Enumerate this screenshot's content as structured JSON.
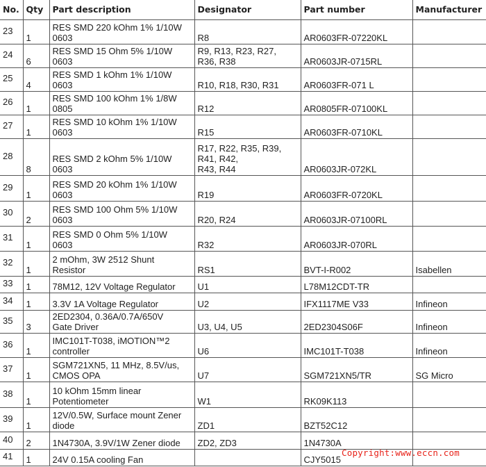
{
  "headers": {
    "no": "No.",
    "qty": "Qty",
    "desc": "Part description",
    "designator": "Designator",
    "part_number": "Part number",
    "manufacturer": "Manufacturer"
  },
  "rows": [
    {
      "no": "23",
      "qty": "1",
      "desc": "RES SMD 220 kOhm 1% 1/10W\n0603",
      "designator": "R8",
      "part_number": "AR0603FR-07220KL",
      "manufacturer": ""
    },
    {
      "no": "24",
      "qty": "6",
      "desc": "RES SMD 15 Ohm 5% 1/10W\n0603",
      "designator": "R9, R13, R23, R27,\nR36, R38",
      "part_number": "AR0603JR-0715RL",
      "manufacturer": ""
    },
    {
      "no": "25",
      "qty": "4",
      "desc": "RES SMD 1 kOhm 1% 1/10W\n0603",
      "designator": "R10, R18, R30, R31",
      "part_number": "AR0603FR-071 L",
      "manufacturer": ""
    },
    {
      "no": "26",
      "qty": "1",
      "desc": "RES SMD 100 kOhm 1% 1/8W\n0805",
      "designator": "R12",
      "part_number": "AR0805FR-07100KL",
      "manufacturer": ""
    },
    {
      "no": "27",
      "qty": "1",
      "desc": "RES SMD 10 kOhm 1% 1/10W\n0603",
      "designator": "R15",
      "part_number": "AR0603FR-0710KL",
      "manufacturer": ""
    },
    {
      "no": "28",
      "qty": "8",
      "desc": "RES SMD 2 kOhm 5% 1/10W\n0603",
      "designator": "R17, R22, R35, R39,\nR41, R42,\nR43, R44",
      "part_number": "AR0603JR-072KL",
      "manufacturer": ""
    },
    {
      "no": "29",
      "qty": "1",
      "desc": "RES SMD 20 kOhm 1% 1/10W\n0603",
      "designator": "R19",
      "part_number": "AR0603FR-0720KL",
      "manufacturer": ""
    },
    {
      "no": "30",
      "qty": "2",
      "desc": "RES SMD 100 Ohm 5% 1/10W\n0603",
      "designator": "R20, R24",
      "part_number": "AR0603JR-07100RL",
      "manufacturer": ""
    },
    {
      "no": "31",
      "qty": "1",
      "desc": "RES SMD 0 Ohm 5% 1/10W\n0603",
      "designator": "R32",
      "part_number": "AR0603JR-070RL",
      "manufacturer": ""
    },
    {
      "no": "32",
      "qty": "1",
      "desc": "2 mOhm, 3W 2512 Shunt\nResistor",
      "designator": "RS1",
      "part_number": "BVT-I-R002",
      "manufacturer": "Isabellen"
    },
    {
      "no": "33",
      "qty": "1",
      "desc": "78M12, 12V Voltage Regulator",
      "designator": "U1",
      "part_number": "L78M12CDT-TR",
      "manufacturer": ""
    },
    {
      "no": "34",
      "qty": "1",
      "desc": "3.3V 1A Voltage Regulator",
      "designator": "U2",
      "part_number": "IFX1117ME V33",
      "manufacturer": "Infineon"
    },
    {
      "no": "35",
      "qty": "3",
      "desc": "2ED2304, 0.36A/0.7A/650V\nGate Driver",
      "designator": "U3, U4, U5",
      "part_number": "2ED2304S06F",
      "manufacturer": "Infineon"
    },
    {
      "no": "36",
      "qty": "1",
      "desc": "IMC101T-T038, iMOTION™2\ncontroller",
      "designator": "U6",
      "part_number": "IMC101T-T038",
      "manufacturer": "Infineon"
    },
    {
      "no": "37",
      "qty": "1",
      "desc": "SGM721XN5, 11 MHz, 8.5V/us,\nCMOS OPA",
      "designator": "U7",
      "part_number": "SGM721XN5/TR",
      "manufacturer": "SG Micro"
    },
    {
      "no": "38",
      "qty": "1",
      "desc": "10 kOhm 15mm linear\nPotentiometer",
      "designator": "W1",
      "part_number": "RK09K113",
      "manufacturer": ""
    },
    {
      "no": "39",
      "qty": "1",
      "desc": "12V/0.5W, Surface mount Zener\ndiode",
      "designator": "ZD1",
      "part_number": "BZT52C12",
      "manufacturer": ""
    },
    {
      "no": "40",
      "qty": "2",
      "desc": "1N4730A, 3.9V/1W Zener diode",
      "designator": "ZD2, ZD3",
      "part_number": "1N4730A",
      "manufacturer": ""
    },
    {
      "no": "41",
      "qty": "1",
      "desc": " 24V 0.15A cooling Fan",
      "designator": "",
      "part_number": "CJY5015",
      "manufacturer": ""
    }
  ],
  "watermark": "Copyright:www.eccn.com"
}
